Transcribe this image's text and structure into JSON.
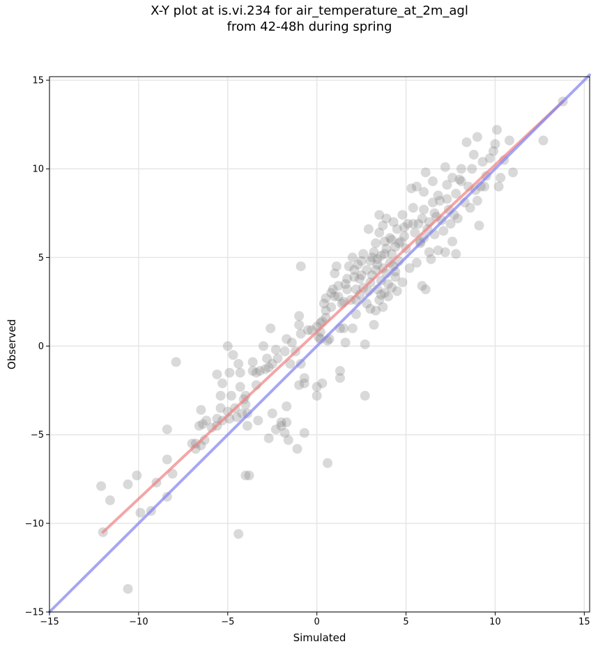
{
  "chart_data": {
    "type": "scatter",
    "title_line1": "X-Y plot at is.vi.234 for air_temperature_at_2m_agl",
    "title_line2": "from 42-48h during spring",
    "xlabel": "Simulated",
    "ylabel": "Observed",
    "xlim": [
      -15,
      15.3
    ],
    "ylim": [
      -15,
      15.2
    ],
    "xticks": [
      -15,
      -10,
      -5,
      0,
      5,
      10,
      15
    ],
    "yticks": [
      -15,
      -10,
      -5,
      0,
      5,
      10,
      15
    ],
    "xtick_labels": [
      "−15",
      "−10",
      "−5",
      "0",
      "5",
      "10",
      "15"
    ],
    "ytick_labels": [
      "−15",
      "−10",
      "−5",
      "0",
      "5",
      "10",
      "15"
    ],
    "grid": true,
    "colors": {
      "points": "#808080",
      "fit_line": "#f08080",
      "identity_line": "#8080f0",
      "grid": "#e6e6e6"
    },
    "series": [
      {
        "kind": "points",
        "points": [
          [
            -12.1,
            -7.9
          ],
          [
            -11.6,
            -8.7
          ],
          [
            -10.6,
            -7.8
          ],
          [
            -10.1,
            -7.3
          ],
          [
            -9.9,
            -9.4
          ],
          [
            -9.3,
            -9.3
          ],
          [
            -9.0,
            -7.7
          ],
          [
            -8.4,
            -8.5
          ],
          [
            -8.4,
            -6.4
          ],
          [
            -8.1,
            -7.2
          ],
          [
            -8.4,
            -4.7
          ],
          [
            -7.9,
            -0.9
          ],
          [
            -12.0,
            -10.5
          ],
          [
            -10.6,
            -13.7
          ],
          [
            -4.4,
            -10.6
          ],
          [
            -7.0,
            -5.5
          ],
          [
            -6.8,
            -5.8
          ],
          [
            -6.5,
            -5.6
          ],
          [
            -6.6,
            -4.5
          ],
          [
            -6.4,
            -4.4
          ],
          [
            -6.5,
            -3.6
          ],
          [
            -6.2,
            -4.2
          ],
          [
            -5.6,
            -4.1
          ],
          [
            -5.6,
            -4.5
          ],
          [
            -5.4,
            -2.8
          ],
          [
            -5.4,
            -3.5
          ],
          [
            -5.3,
            -2.1
          ],
          [
            -5.6,
            -1.6
          ],
          [
            -5.0,
            -3.7
          ],
          [
            -4.9,
            -4.1
          ],
          [
            -4.8,
            -2.8
          ],
          [
            -4.9,
            -1.5
          ],
          [
            -5.0,
            0.0
          ],
          [
            -4.7,
            -0.5
          ],
          [
            -4.4,
            -1.0
          ],
          [
            -4.3,
            -1.5
          ],
          [
            -4.3,
            -2.3
          ],
          [
            -4.1,
            -3.0
          ],
          [
            -4.0,
            -3.3
          ],
          [
            -3.9,
            -3.8
          ],
          [
            -4.2,
            -3.8
          ],
          [
            -4.5,
            -4.0
          ],
          [
            -3.9,
            -4.5
          ],
          [
            -4.0,
            -7.3
          ],
          [
            -3.8,
            -7.3
          ],
          [
            -3.6,
            -0.9
          ],
          [
            -3.4,
            -1.5
          ],
          [
            -3.2,
            -1.4
          ],
          [
            -3.3,
            -4.2
          ],
          [
            -3.0,
            0.0
          ],
          [
            -2.8,
            -0.7
          ],
          [
            -2.7,
            -1.2
          ],
          [
            -2.5,
            -1.0
          ],
          [
            -2.7,
            -5.2
          ],
          [
            -2.5,
            -3.8
          ],
          [
            -2.3,
            -4.7
          ],
          [
            -2.3,
            -0.2
          ],
          [
            -2.0,
            -4.3
          ],
          [
            -2.0,
            -4.5
          ],
          [
            -2.6,
            1.0
          ],
          [
            -1.8,
            -0.3
          ],
          [
            -1.7,
            -3.4
          ],
          [
            -1.7,
            -4.3
          ],
          [
            -1.8,
            -4.9
          ],
          [
            -1.6,
            -5.3
          ],
          [
            -1.7,
            0.4
          ],
          [
            -1.2,
            -0.3
          ],
          [
            -1.0,
            1.7
          ],
          [
            -1.0,
            1.2
          ],
          [
            -0.9,
            4.5
          ],
          [
            -1.0,
            -2.2
          ],
          [
            -0.9,
            -1.0
          ],
          [
            -0.7,
            -4.9
          ],
          [
            -0.7,
            -1.8
          ],
          [
            -0.7,
            -2.1
          ],
          [
            -1.1,
            -5.8
          ],
          [
            -0.5,
            0.9
          ],
          [
            0.0,
            1.1
          ],
          [
            0.1,
            0.5
          ],
          [
            0.2,
            0.8
          ],
          [
            0.3,
            1.4
          ],
          [
            0.4,
            2.4
          ],
          [
            0.5,
            2.0
          ],
          [
            0.5,
            2.7
          ],
          [
            0.6,
            0.3
          ],
          [
            0.6,
            -6.6
          ],
          [
            0.0,
            -2.3
          ],
          [
            0.0,
            -2.8
          ],
          [
            0.2,
            0.4
          ],
          [
            0.8,
            3.0
          ],
          [
            0.9,
            3.2
          ],
          [
            1.0,
            2.8
          ],
          [
            1.0,
            4.1
          ],
          [
            1.1,
            4.5
          ],
          [
            1.2,
            3.4
          ],
          [
            1.3,
            1.0
          ],
          [
            1.4,
            2.4
          ],
          [
            1.5,
            2.5
          ],
          [
            1.6,
            3.5
          ],
          [
            1.6,
            0.2
          ],
          [
            1.7,
            3.8
          ],
          [
            1.8,
            4.5
          ],
          [
            1.9,
            2.6
          ],
          [
            2.0,
            1.0
          ],
          [
            2.0,
            5.0
          ],
          [
            2.1,
            4.3
          ],
          [
            2.2,
            3.2
          ],
          [
            2.2,
            1.8
          ],
          [
            2.3,
            4.6
          ],
          [
            2.4,
            2.9
          ],
          [
            2.4,
            3.8
          ],
          [
            2.5,
            4.8
          ],
          [
            2.6,
            3.3
          ],
          [
            2.6,
            5.2
          ],
          [
            2.7,
            0.1
          ],
          [
            2.7,
            -2.8
          ],
          [
            2.8,
            2.4
          ],
          [
            2.8,
            4.3
          ],
          [
            2.9,
            3.1
          ],
          [
            2.9,
            6.6
          ],
          [
            3.0,
            2.1
          ],
          [
            3.0,
            3.6
          ],
          [
            3.1,
            4.0
          ],
          [
            3.1,
            5.0
          ],
          [
            3.2,
            1.2
          ],
          [
            3.2,
            5.3
          ],
          [
            3.3,
            2.0
          ],
          [
            3.3,
            4.3
          ],
          [
            3.3,
            5.8
          ],
          [
            3.4,
            3.2
          ],
          [
            3.4,
            4.9
          ],
          [
            3.5,
            2.6
          ],
          [
            3.5,
            6.4
          ],
          [
            3.5,
            7.4
          ],
          [
            3.6,
            3.7
          ],
          [
            3.6,
            5.1
          ],
          [
            3.7,
            2.2
          ],
          [
            3.7,
            4.4
          ],
          [
            3.7,
            6.8
          ],
          [
            3.8,
            3.0
          ],
          [
            3.8,
            5.9
          ],
          [
            3.9,
            4.1
          ],
          [
            3.9,
            5.5
          ],
          [
            3.9,
            7.2
          ],
          [
            4.0,
            3.5
          ],
          [
            4.0,
            2.8
          ],
          [
            4.1,
            6.1
          ],
          [
            4.1,
            4.7
          ],
          [
            4.2,
            5.2
          ],
          [
            4.2,
            3.3
          ],
          [
            4.3,
            7.0
          ],
          [
            4.3,
            4.5
          ],
          [
            4.4,
            5.6
          ],
          [
            4.4,
            3.9
          ],
          [
            4.5,
            6.6
          ],
          [
            4.5,
            3.1
          ],
          [
            4.6,
            4.8
          ],
          [
            4.7,
            5.9
          ],
          [
            4.8,
            7.4
          ],
          [
            4.8,
            3.6
          ],
          [
            4.9,
            6.2
          ],
          [
            5.0,
            5.5
          ],
          [
            5.1,
            6.9
          ],
          [
            5.2,
            4.4
          ],
          [
            5.3,
            8.9
          ],
          [
            5.4,
            7.8
          ],
          [
            5.5,
            6.4
          ],
          [
            5.6,
            4.7
          ],
          [
            5.6,
            9.0
          ],
          [
            5.7,
            6.9
          ],
          [
            5.8,
            5.8
          ],
          [
            5.9,
            7.2
          ],
          [
            5.9,
            3.4
          ],
          [
            6.0,
            6.1
          ],
          [
            6.0,
            8.7
          ],
          [
            6.1,
            3.2
          ],
          [
            6.1,
            9.8
          ],
          [
            6.2,
            6.6
          ],
          [
            6.3,
            5.3
          ],
          [
            6.3,
            7.0
          ],
          [
            6.4,
            4.9
          ],
          [
            6.5,
            8.1
          ],
          [
            6.5,
            9.3
          ],
          [
            6.6,
            6.3
          ],
          [
            6.7,
            7.3
          ],
          [
            6.8,
            5.4
          ],
          [
            6.9,
            8.2
          ],
          [
            7.0,
            7.1
          ],
          [
            7.1,
            6.5
          ],
          [
            7.2,
            10.1
          ],
          [
            7.2,
            5.3
          ],
          [
            7.3,
            8.3
          ],
          [
            7.4,
            7.7
          ],
          [
            7.5,
            6.9
          ],
          [
            7.6,
            9.5
          ],
          [
            7.6,
            5.9
          ],
          [
            7.7,
            7.4
          ],
          [
            7.8,
            8.6
          ],
          [
            7.8,
            5.2
          ],
          [
            7.9,
            7.2
          ],
          [
            8.0,
            9.4
          ],
          [
            8.1,
            10.0
          ],
          [
            8.3,
            8.1
          ],
          [
            8.4,
            11.5
          ],
          [
            8.5,
            9.0
          ],
          [
            8.6,
            7.8
          ],
          [
            8.7,
            10.0
          ],
          [
            8.8,
            10.8
          ],
          [
            8.9,
            8.8
          ],
          [
            9.0,
            11.8
          ],
          [
            9.1,
            6.8
          ],
          [
            9.2,
            9.0
          ],
          [
            9.3,
            10.4
          ],
          [
            9.4,
            9.0
          ],
          [
            9.5,
            9.6
          ],
          [
            9.7,
            10.6
          ],
          [
            9.9,
            11.0
          ],
          [
            10.0,
            11.4
          ],
          [
            10.1,
            12.2
          ],
          [
            10.2,
            9.0
          ],
          [
            10.3,
            9.5
          ],
          [
            10.5,
            10.5
          ],
          [
            10.8,
            11.6
          ],
          [
            11.0,
            9.8
          ],
          [
            12.7,
            11.6
          ],
          [
            13.8,
            13.8
          ],
          [
            9.0,
            8.2
          ],
          [
            8.1,
            9.3
          ],
          [
            7.3,
            9.1
          ],
          [
            6.8,
            8.5
          ],
          [
            6.0,
            7.7
          ],
          [
            5.4,
            6.9
          ],
          [
            4.9,
            6.7
          ],
          [
            4.6,
            5.8
          ],
          [
            4.2,
            6.0
          ],
          [
            3.8,
            5.2
          ],
          [
            3.4,
            4.6
          ],
          [
            3.0,
            4.8
          ],
          [
            2.5,
            4.0
          ],
          [
            2.1,
            3.9
          ],
          [
            1.7,
            3.2
          ],
          [
            1.2,
            2.8
          ],
          [
            0.8,
            2.2
          ],
          [
            0.5,
            1.6
          ],
          [
            0.2,
            1.3
          ],
          [
            -0.3,
            0.9
          ],
          [
            -0.9,
            0.7
          ],
          [
            -1.4,
            0.2
          ],
          [
            -2.2,
            -0.7
          ],
          [
            -2.9,
            -1.3
          ],
          [
            -3.4,
            -2.2
          ],
          [
            -4.0,
            -2.8
          ],
          [
            -4.6,
            -3.5
          ],
          [
            -5.3,
            -4.2
          ],
          [
            -5.9,
            -4.6
          ],
          [
            -6.3,
            -5.3
          ],
          [
            -1.5,
            -1.0
          ],
          [
            1.3,
            -1.4
          ],
          [
            1.3,
            -1.8
          ],
          [
            0.3,
            -2.1
          ],
          [
            4.4,
            4.2
          ],
          [
            5.8,
            5.9
          ],
          [
            6.6,
            7.5
          ],
          [
            3.6,
            2.9
          ],
          [
            2.2,
            2.6
          ],
          [
            1.5,
            1.0
          ],
          [
            0.7,
            0.4
          ],
          [
            -3.6,
            -1.4
          ],
          [
            -6.8,
            -5.5
          ]
        ]
      },
      {
        "kind": "line",
        "name": "fit",
        "x": [
          -12.0,
          13.8
        ],
        "y": [
          -10.5,
          13.8
        ]
      },
      {
        "kind": "line",
        "name": "identity",
        "x": [
          -15,
          15.3
        ],
        "y": [
          -15,
          15.3
        ]
      }
    ]
  }
}
